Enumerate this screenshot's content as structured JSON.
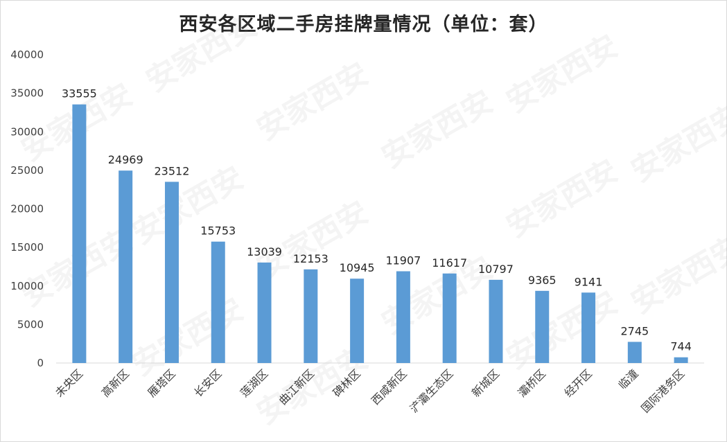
{
  "chart_data": {
    "type": "bar",
    "title": "西安各区域二手房挂牌量情况（单位：套）",
    "categories": [
      "未央区",
      "高新区",
      "雁塔区",
      "长安区",
      "莲湖区",
      "曲江新区",
      "碑林区",
      "西咸新区",
      "浐灞生态区",
      "新城区",
      "灞桥区",
      "经开区",
      "临潼",
      "国际港务区"
    ],
    "series": [
      {
        "values": [
          33555,
          24969,
          23512,
          15753,
          13039,
          12153,
          10945,
          11907,
          11617,
          10797,
          9365,
          9141,
          2745,
          744
        ]
      }
    ],
    "yticks": [
      "0",
      "5000",
      "10000",
      "15000",
      "20000",
      "25000",
      "30000",
      "35000",
      "40000"
    ],
    "ylim": [
      0,
      40000
    ],
    "bar_color": "#5b9bd5",
    "grid": false,
    "legend": false
  },
  "watermark_text": "安家西安"
}
